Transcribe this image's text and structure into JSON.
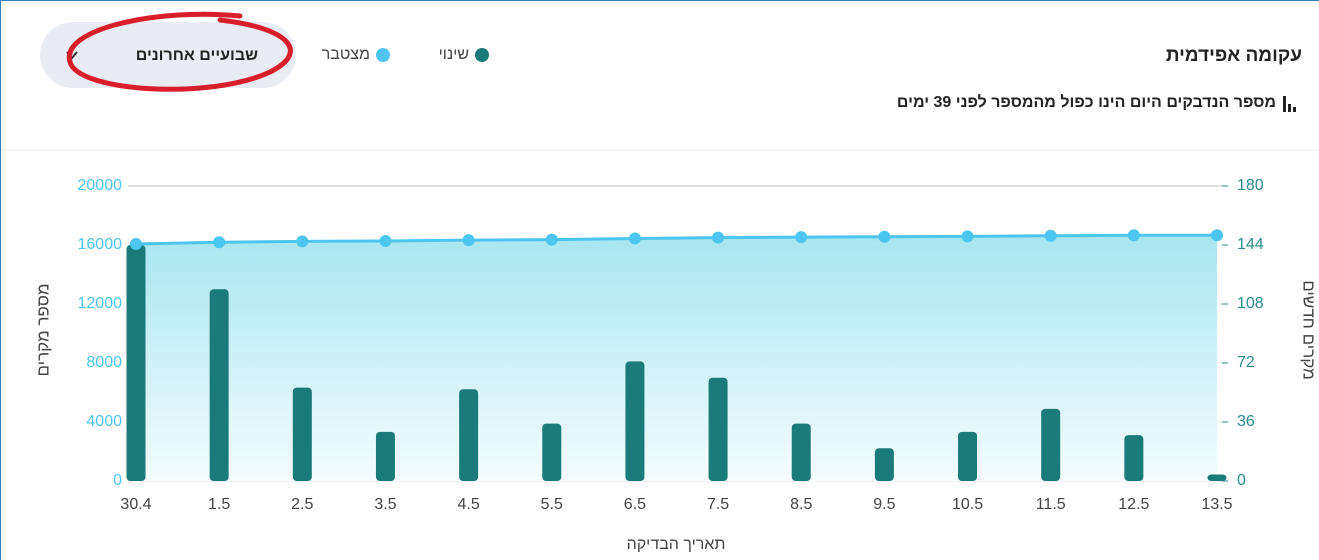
{
  "header": {
    "title": "עקומה אפידמית",
    "subtitle": "מספר הנדבקים היום הינו כפול מהמספר לפני 39 ימים",
    "dropdown": "שבועיים אחרונים"
  },
  "chart_data": {
    "type": "combo",
    "x_label": "תאריך הבדיקה",
    "y_label": "מספר מקרים",
    "y2_label": "מקרים חדשים",
    "categories": [
      "30.4",
      "1.5",
      "2.5",
      "3.5",
      "4.5",
      "5.5",
      "6.5",
      "7.5",
      "8.5",
      "9.5",
      "10.5",
      "11.5",
      "12.5",
      "13.5"
    ],
    "series": [
      {
        "name": "שינוי",
        "type": "bar",
        "axis": "y2",
        "color": "#1b7b7b",
        "values": [
          144,
          117,
          57,
          30,
          56,
          35,
          73,
          63,
          35,
          20,
          30,
          44,
          28,
          4
        ]
      },
      {
        "name": "מצטבר",
        "type": "line",
        "color": "#4cc6f0",
        "values": [
          16070,
          16187,
          16244,
          16274,
          16330,
          16365,
          16438,
          16501,
          16536,
          16556,
          16586,
          16630,
          16658,
          16662
        ]
      }
    ],
    "ylim": [
      0,
      20000
    ],
    "yticks": [
      0,
      4000,
      8000,
      12000,
      16000,
      20000
    ],
    "y2lim": [
      0,
      180
    ],
    "y2ticks": [
      0,
      36,
      72,
      108,
      144,
      180
    ],
    "grid": true
  }
}
